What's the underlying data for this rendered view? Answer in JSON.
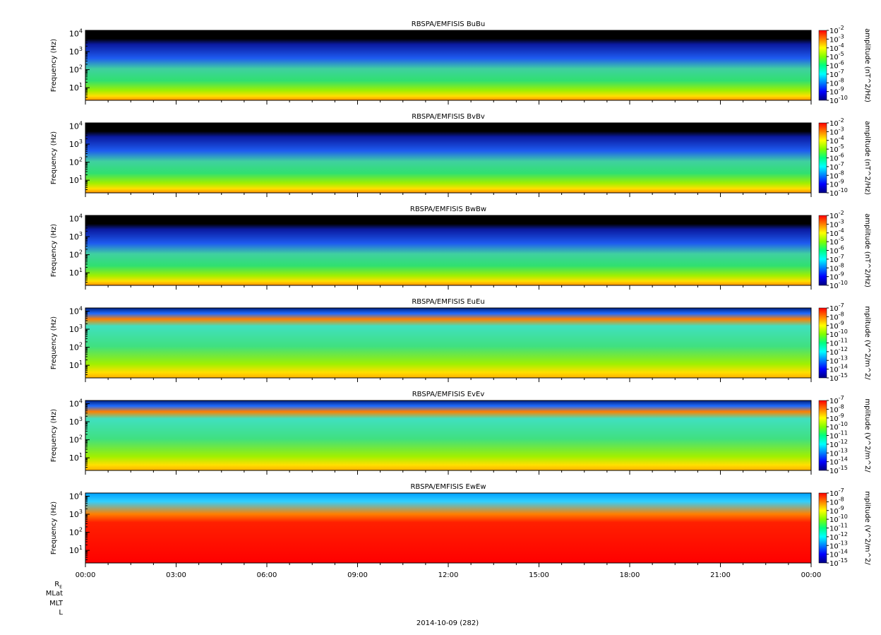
{
  "page": {
    "date_label": "2014-10-09 (282)",
    "ephemeris_labels": [
      "R",
      "MLat",
      "MLT",
      "L"
    ],
    "ephemeris_subscript": "E"
  },
  "colormap": [
    "#000080",
    "#0000ff",
    "#0080ff",
    "#00ffff",
    "#00ff80",
    "#80ff00",
    "#ffff00",
    "#ff8000",
    "#ff0000"
  ],
  "chart_data": [
    {
      "type": "heatmap",
      "title": "RBSPA/EMFISIS  BuBu",
      "ylabel": "Frequency (Hz)",
      "yscale": "log",
      "ylim": [
        2,
        15000
      ],
      "y_ticks": [
        1,
        2,
        3,
        4
      ],
      "xlim": [
        "00:00",
        "00:00"
      ],
      "colorbar_label": "amplitude (nT^2/Hz)",
      "colorbar_range_exp": [
        -10,
        -2
      ],
      "colorbar_ticks_exp": [
        -2,
        -3,
        -4,
        -5,
        -6,
        -7,
        -8,
        -9,
        -10
      ]
    },
    {
      "type": "heatmap",
      "title": "RBSPA/EMFISIS  BvBv",
      "ylabel": "Frequency (Hz)",
      "yscale": "log",
      "ylim": [
        2,
        15000
      ],
      "y_ticks": [
        1,
        2,
        3,
        4
      ],
      "xlim": [
        "00:00",
        "00:00"
      ],
      "colorbar_label": "amplitude (nT^2/Hz)",
      "colorbar_range_exp": [
        -10,
        -2
      ],
      "colorbar_ticks_exp": [
        -2,
        -3,
        -4,
        -5,
        -6,
        -7,
        -8,
        -9,
        -10
      ]
    },
    {
      "type": "heatmap",
      "title": "RBSPA/EMFISIS  BwBw",
      "ylabel": "Frequency (Hz)",
      "yscale": "log",
      "ylim": [
        2,
        15000
      ],
      "y_ticks": [
        1,
        2,
        3,
        4
      ],
      "xlim": [
        "00:00",
        "00:00"
      ],
      "colorbar_label": "amplitude (nT^2/Hz)",
      "colorbar_range_exp": [
        -10,
        -2
      ],
      "colorbar_ticks_exp": [
        -2,
        -3,
        -4,
        -5,
        -6,
        -7,
        -8,
        -9,
        -10
      ]
    },
    {
      "type": "heatmap",
      "title": "RBSPA/EMFISIS  EuEu",
      "ylabel": "Frequency (Hz)",
      "yscale": "log",
      "ylim": [
        2,
        15000
      ],
      "y_ticks": [
        1,
        2,
        3,
        4
      ],
      "xlim": [
        "00:00",
        "00:00"
      ],
      "colorbar_label": "mplitude (V^2/m^2/",
      "colorbar_range_exp": [
        -15,
        -7
      ],
      "colorbar_ticks_exp": [
        -7,
        -8,
        -9,
        -10,
        -11,
        -12,
        -13,
        -14,
        -15
      ]
    },
    {
      "type": "heatmap",
      "title": "RBSPA/EMFISIS  EvEv",
      "ylabel": "Frequency (Hz)",
      "yscale": "log",
      "ylim": [
        2,
        15000
      ],
      "y_ticks": [
        1,
        2,
        3,
        4
      ],
      "xlim": [
        "00:00",
        "00:00"
      ],
      "colorbar_label": "mplitude (V^2/m^2/",
      "colorbar_range_exp": [
        -15,
        -7
      ],
      "colorbar_ticks_exp": [
        -7,
        -8,
        -9,
        -10,
        -11,
        -12,
        -13,
        -14,
        -15
      ]
    },
    {
      "type": "heatmap",
      "title": "RBSPA/EMFISIS  EwEw",
      "ylabel": "Frequency (Hz)",
      "yscale": "log",
      "ylim": [
        2,
        15000
      ],
      "y_ticks": [
        1,
        2,
        3,
        4
      ],
      "xlim": [
        "00:00",
        "00:00"
      ],
      "x_ticks": [
        "00:00",
        "03:00",
        "06:00",
        "09:00",
        "12:00",
        "15:00",
        "18:00",
        "21:00",
        "00:00"
      ],
      "colorbar_label": "mplitude (V^2/m^2/",
      "colorbar_range_exp": [
        -15,
        -7
      ],
      "colorbar_ticks_exp": [
        -7,
        -8,
        -9,
        -10,
        -11,
        -12,
        -13,
        -14,
        -15
      ]
    }
  ]
}
